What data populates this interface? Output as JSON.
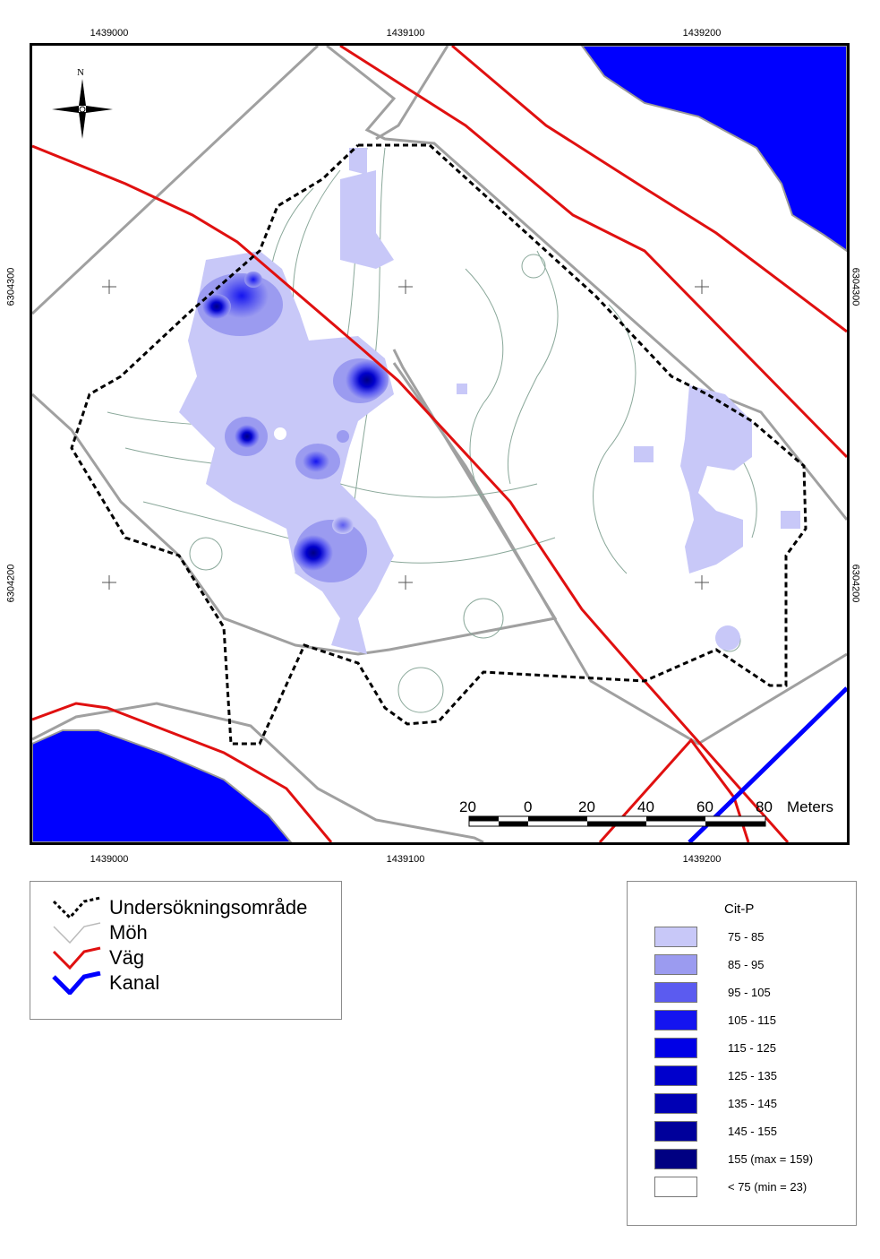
{
  "map": {
    "coords_top": [
      "1439000",
      "1439100",
      "1439200"
    ],
    "coords_bottom": [
      "1439000",
      "1439100",
      "1439200"
    ],
    "coords_left": [
      "6304300",
      "6304200"
    ],
    "coords_right": [
      "6304300",
      "6304200"
    ],
    "north_label": "N",
    "scale_bar": {
      "ticks": [
        "20",
        "0",
        "20",
        "40",
        "60",
        "80"
      ],
      "unit": "Meters"
    },
    "colors": {
      "road": "#e01010",
      "canal": "#0000ff",
      "water": "#0000ff",
      "contour": "#a8a8a8",
      "boundary": "#000000"
    }
  },
  "legend": {
    "items": [
      {
        "label": "Undersökningsområde",
        "symbol": "dashed-black-zigzag"
      },
      {
        "label": "Möh",
        "symbol": "grey-zigzag"
      },
      {
        "label": "Väg",
        "symbol": "red-zigzag"
      },
      {
        "label": "Kanal",
        "symbol": "blue-zigzag"
      }
    ]
  },
  "cit_legend": {
    "title": "Cit-P",
    "classes": [
      {
        "label": "75 - 85",
        "color": "#c8c8f8"
      },
      {
        "label": "85 - 95",
        "color": "#9b9bf0"
      },
      {
        "label": "95 - 105",
        "color": "#5b5bf0"
      },
      {
        "label": "105 - 115",
        "color": "#1414f0"
      },
      {
        "label": "115 - 125",
        "color": "#0000e6"
      },
      {
        "label": "125 - 135",
        "color": "#0000cc"
      },
      {
        "label": "135 - 145",
        "color": "#0000b4"
      },
      {
        "label": "145 - 155",
        "color": "#00009b"
      },
      {
        "label": "155 (max = 159)",
        "color": "#000082"
      },
      {
        "label": "< 75 (min = 23)",
        "color": "#ffffff"
      }
    ]
  }
}
